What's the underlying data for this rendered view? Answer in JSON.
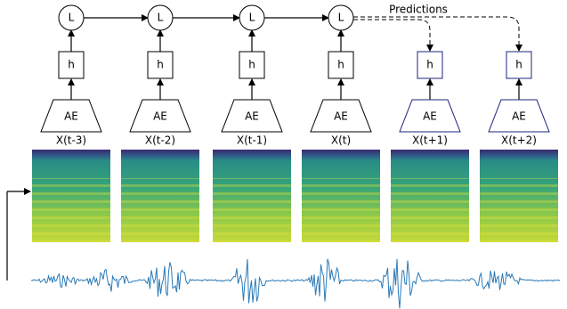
{
  "annotation": "Predictions",
  "nodes": {
    "L": [
      "L",
      "L",
      "L",
      "L"
    ],
    "h": [
      "h",
      "h",
      "h",
      "h",
      "h",
      "h"
    ],
    "AE": [
      "AE",
      "AE",
      "AE",
      "AE",
      "AE",
      "AE"
    ]
  },
  "inputs": [
    "X(t-3)",
    "X(t-2)",
    "X(t-1)",
    "X(t)",
    "X(t+1)",
    "X(t+2)"
  ]
}
